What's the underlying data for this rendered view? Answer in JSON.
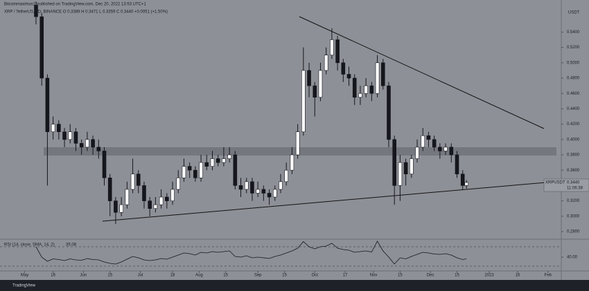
{
  "header": "Bitcoinmaximus1 published on TradingView.com, Dec 20, 2022 13:53 UTC+1",
  "symbol_line": "XRP / TetherUS, 1D, BINANCE  O 0.3389  H 0.3471  L 0.3359  C 0.3440  +0.0051 (+1.50%)",
  "currency": "USDT",
  "ticker": "XRPUSDT",
  "last_price_label": "0.3440",
  "countdown": "11:06:38",
  "rsi_label": "RSI (14, close, SMA, 14, 2)",
  "rsi_value_label": "35.08",
  "footer": "TradingView",
  "chart_data": [
    {
      "type": "candlestick",
      "up_color": "#ffffff",
      "down_color": "#15171d",
      "x": [
        6,
        9,
        12,
        15,
        18,
        21,
        24,
        27,
        30,
        33,
        36,
        39,
        42,
        45,
        48,
        51,
        54,
        57,
        60,
        63,
        66,
        69,
        72,
        75,
        78,
        81,
        84,
        87,
        90,
        93,
        96,
        99,
        102,
        105,
        108,
        111,
        114,
        117,
        120,
        123,
        126,
        129,
        132,
        135,
        138,
        141,
        144,
        147,
        150,
        153,
        156,
        159,
        162,
        165,
        168,
        171,
        174,
        177,
        180,
        183,
        186,
        189,
        192,
        195,
        198,
        201,
        204,
        207,
        210,
        213,
        216,
        219,
        222,
        225,
        228,
        231,
        233
      ],
      "open": [
        0.575,
        0.56,
        0.48,
        0.41,
        0.42,
        0.41,
        0.4,
        0.41,
        0.395,
        0.39,
        0.4,
        0.39,
        0.385,
        0.35,
        0.32,
        0.305,
        0.315,
        0.335,
        0.355,
        0.34,
        0.32,
        0.31,
        0.315,
        0.325,
        0.32,
        0.335,
        0.35,
        0.365,
        0.36,
        0.35,
        0.37,
        0.365,
        0.375,
        0.37,
        0.375,
        0.38,
        0.34,
        0.335,
        0.345,
        0.33,
        0.335,
        0.33,
        0.325,
        0.335,
        0.345,
        0.36,
        0.38,
        0.41,
        0.49,
        0.47,
        0.455,
        0.49,
        0.51,
        0.53,
        0.5,
        0.485,
        0.48,
        0.455,
        0.46,
        0.47,
        0.46,
        0.5,
        0.47,
        0.4,
        0.34,
        0.37,
        0.355,
        0.375,
        0.39,
        0.405,
        0.4,
        0.39,
        0.385,
        0.39,
        0.38,
        0.355,
        0.34
      ],
      "high": [
        0.58,
        0.565,
        0.485,
        0.43,
        0.425,
        0.415,
        0.42,
        0.415,
        0.4,
        0.41,
        0.405,
        0.4,
        0.39,
        0.355,
        0.325,
        0.325,
        0.345,
        0.375,
        0.36,
        0.345,
        0.325,
        0.325,
        0.335,
        0.33,
        0.345,
        0.36,
        0.375,
        0.37,
        0.365,
        0.38,
        0.38,
        0.385,
        0.38,
        0.39,
        0.39,
        0.385,
        0.35,
        0.35,
        0.35,
        0.345,
        0.34,
        0.335,
        0.34,
        0.355,
        0.37,
        0.39,
        0.42,
        0.52,
        0.5,
        0.475,
        0.5,
        0.52,
        0.545,
        0.535,
        0.505,
        0.495,
        0.485,
        0.47,
        0.48,
        0.475,
        0.51,
        0.505,
        0.475,
        0.405,
        0.38,
        0.375,
        0.38,
        0.4,
        0.415,
        0.41,
        0.405,
        0.395,
        0.395,
        0.395,
        0.385,
        0.36,
        0.347
      ],
      "low": [
        0.55,
        0.47,
        0.34,
        0.4,
        0.4,
        0.39,
        0.395,
        0.385,
        0.38,
        0.385,
        0.38,
        0.375,
        0.34,
        0.3,
        0.29,
        0.3,
        0.31,
        0.33,
        0.33,
        0.31,
        0.3,
        0.305,
        0.31,
        0.31,
        0.315,
        0.33,
        0.345,
        0.35,
        0.345,
        0.345,
        0.36,
        0.36,
        0.365,
        0.365,
        0.37,
        0.335,
        0.325,
        0.33,
        0.32,
        0.325,
        0.32,
        0.315,
        0.32,
        0.33,
        0.34,
        0.355,
        0.375,
        0.405,
        0.455,
        0.43,
        0.45,
        0.485,
        0.505,
        0.49,
        0.475,
        0.47,
        0.445,
        0.445,
        0.455,
        0.45,
        0.455,
        0.465,
        0.39,
        0.315,
        0.32,
        0.34,
        0.35,
        0.37,
        0.385,
        0.39,
        0.385,
        0.375,
        0.38,
        0.37,
        0.35,
        0.335,
        0.336
      ],
      "close": [
        0.56,
        0.48,
        0.41,
        0.42,
        0.41,
        0.4,
        0.41,
        0.395,
        0.39,
        0.4,
        0.39,
        0.385,
        0.35,
        0.32,
        0.305,
        0.315,
        0.335,
        0.355,
        0.34,
        0.32,
        0.31,
        0.315,
        0.325,
        0.32,
        0.335,
        0.35,
        0.365,
        0.36,
        0.35,
        0.37,
        0.365,
        0.375,
        0.37,
        0.375,
        0.38,
        0.34,
        0.335,
        0.345,
        0.33,
        0.335,
        0.33,
        0.325,
        0.335,
        0.345,
        0.36,
        0.38,
        0.41,
        0.49,
        0.47,
        0.455,
        0.49,
        0.51,
        0.53,
        0.5,
        0.485,
        0.48,
        0.455,
        0.46,
        0.47,
        0.46,
        0.5,
        0.47,
        0.4,
        0.34,
        0.37,
        0.355,
        0.375,
        0.39,
        0.405,
        0.4,
        0.39,
        0.385,
        0.39,
        0.38,
        0.355,
        0.34,
        0.344
      ],
      "xlim": [
        -13,
        283
      ],
      "ylim": [
        0.271,
        0.58
      ],
      "yticks": [
        {
          "value": 0.28,
          "label": "0.2800"
        },
        {
          "value": 0.3,
          "label": "0.3000"
        },
        {
          "value": 0.32,
          "label": "0.3200"
        },
        {
          "value": 0.34,
          "label": "0.3400"
        },
        {
          "value": 0.36,
          "label": "0.3600"
        },
        {
          "value": 0.38,
          "label": "0.3800"
        },
        {
          "value": 0.4,
          "label": "0.4000"
        },
        {
          "value": 0.42,
          "label": "0.4200"
        },
        {
          "value": 0.44,
          "label": "0.4400"
        },
        {
          "value": 0.46,
          "label": "0.4600"
        },
        {
          "value": 0.48,
          "label": "0.4800"
        },
        {
          "value": 0.5,
          "label": "0.5000"
        },
        {
          "value": 0.52,
          "label": "0.5200"
        },
        {
          "value": 0.54,
          "label": "0.5400"
        }
      ]
    },
    {
      "type": "line",
      "color": "#15171d",
      "x": [
        6,
        9,
        12,
        15,
        18,
        21,
        24,
        27,
        30,
        33,
        36,
        39,
        42,
        45,
        48,
        51,
        54,
        57,
        60,
        63,
        66,
        69,
        72,
        75,
        78,
        81,
        84,
        87,
        90,
        93,
        96,
        99,
        102,
        105,
        108,
        111,
        114,
        117,
        120,
        123,
        126,
        129,
        132,
        135,
        138,
        141,
        144,
        147,
        150,
        153,
        156,
        159,
        162,
        165,
        168,
        171,
        174,
        177,
        180,
        183,
        186,
        189,
        192,
        195,
        198,
        201,
        204,
        207,
        210,
        213,
        216,
        219,
        222,
        225,
        228,
        231,
        233
      ],
      "values": [
        70,
        40,
        28,
        35,
        33,
        30,
        35,
        32,
        31,
        36,
        33,
        32,
        26,
        22,
        20,
        26,
        34,
        42,
        38,
        32,
        30,
        32,
        36,
        34,
        40,
        46,
        52,
        50,
        46,
        54,
        52,
        56,
        54,
        56,
        58,
        42,
        40,
        44,
        38,
        40,
        38,
        36,
        42,
        46,
        52,
        58,
        66,
        85,
        70,
        64,
        70,
        72,
        80,
        66,
        62,
        60,
        54,
        56,
        58,
        55,
        86,
        58,
        40,
        20,
        38,
        35,
        42,
        48,
        54,
        52,
        49,
        48,
        50,
        46,
        38,
        33,
        35.08
      ],
      "xlim": [
        -13,
        283
      ],
      "ylim": [
        0,
        88
      ],
      "yticks": [
        {
          "value": 40,
          "label": "40.00"
        }
      ],
      "xticks": [
        {
          "value": 0,
          "label": "May"
        },
        {
          "value": 15,
          "label": "16"
        },
        {
          "value": 31,
          "label": "Jun"
        },
        {
          "value": 45,
          "label": "15"
        },
        {
          "value": 61,
          "label": "Jul"
        },
        {
          "value": 78,
          "label": "18"
        },
        {
          "value": 92,
          "label": "Aug"
        },
        {
          "value": 106,
          "label": "15"
        },
        {
          "value": 123,
          "label": "Sep"
        },
        {
          "value": 137,
          "label": "15"
        },
        {
          "value": 153,
          "label": "Oct"
        },
        {
          "value": 169,
          "label": "17"
        },
        {
          "value": 184,
          "label": "Nov"
        },
        {
          "value": 198,
          "label": "15"
        },
        {
          "value": 214,
          "label": "Dec"
        },
        {
          "value": 228,
          "label": "15"
        },
        {
          "value": 245,
          "label": "2023"
        },
        {
          "value": 260,
          "label": "16"
        },
        {
          "value": 276,
          "label": "Feb"
        }
      ]
    }
  ]
}
